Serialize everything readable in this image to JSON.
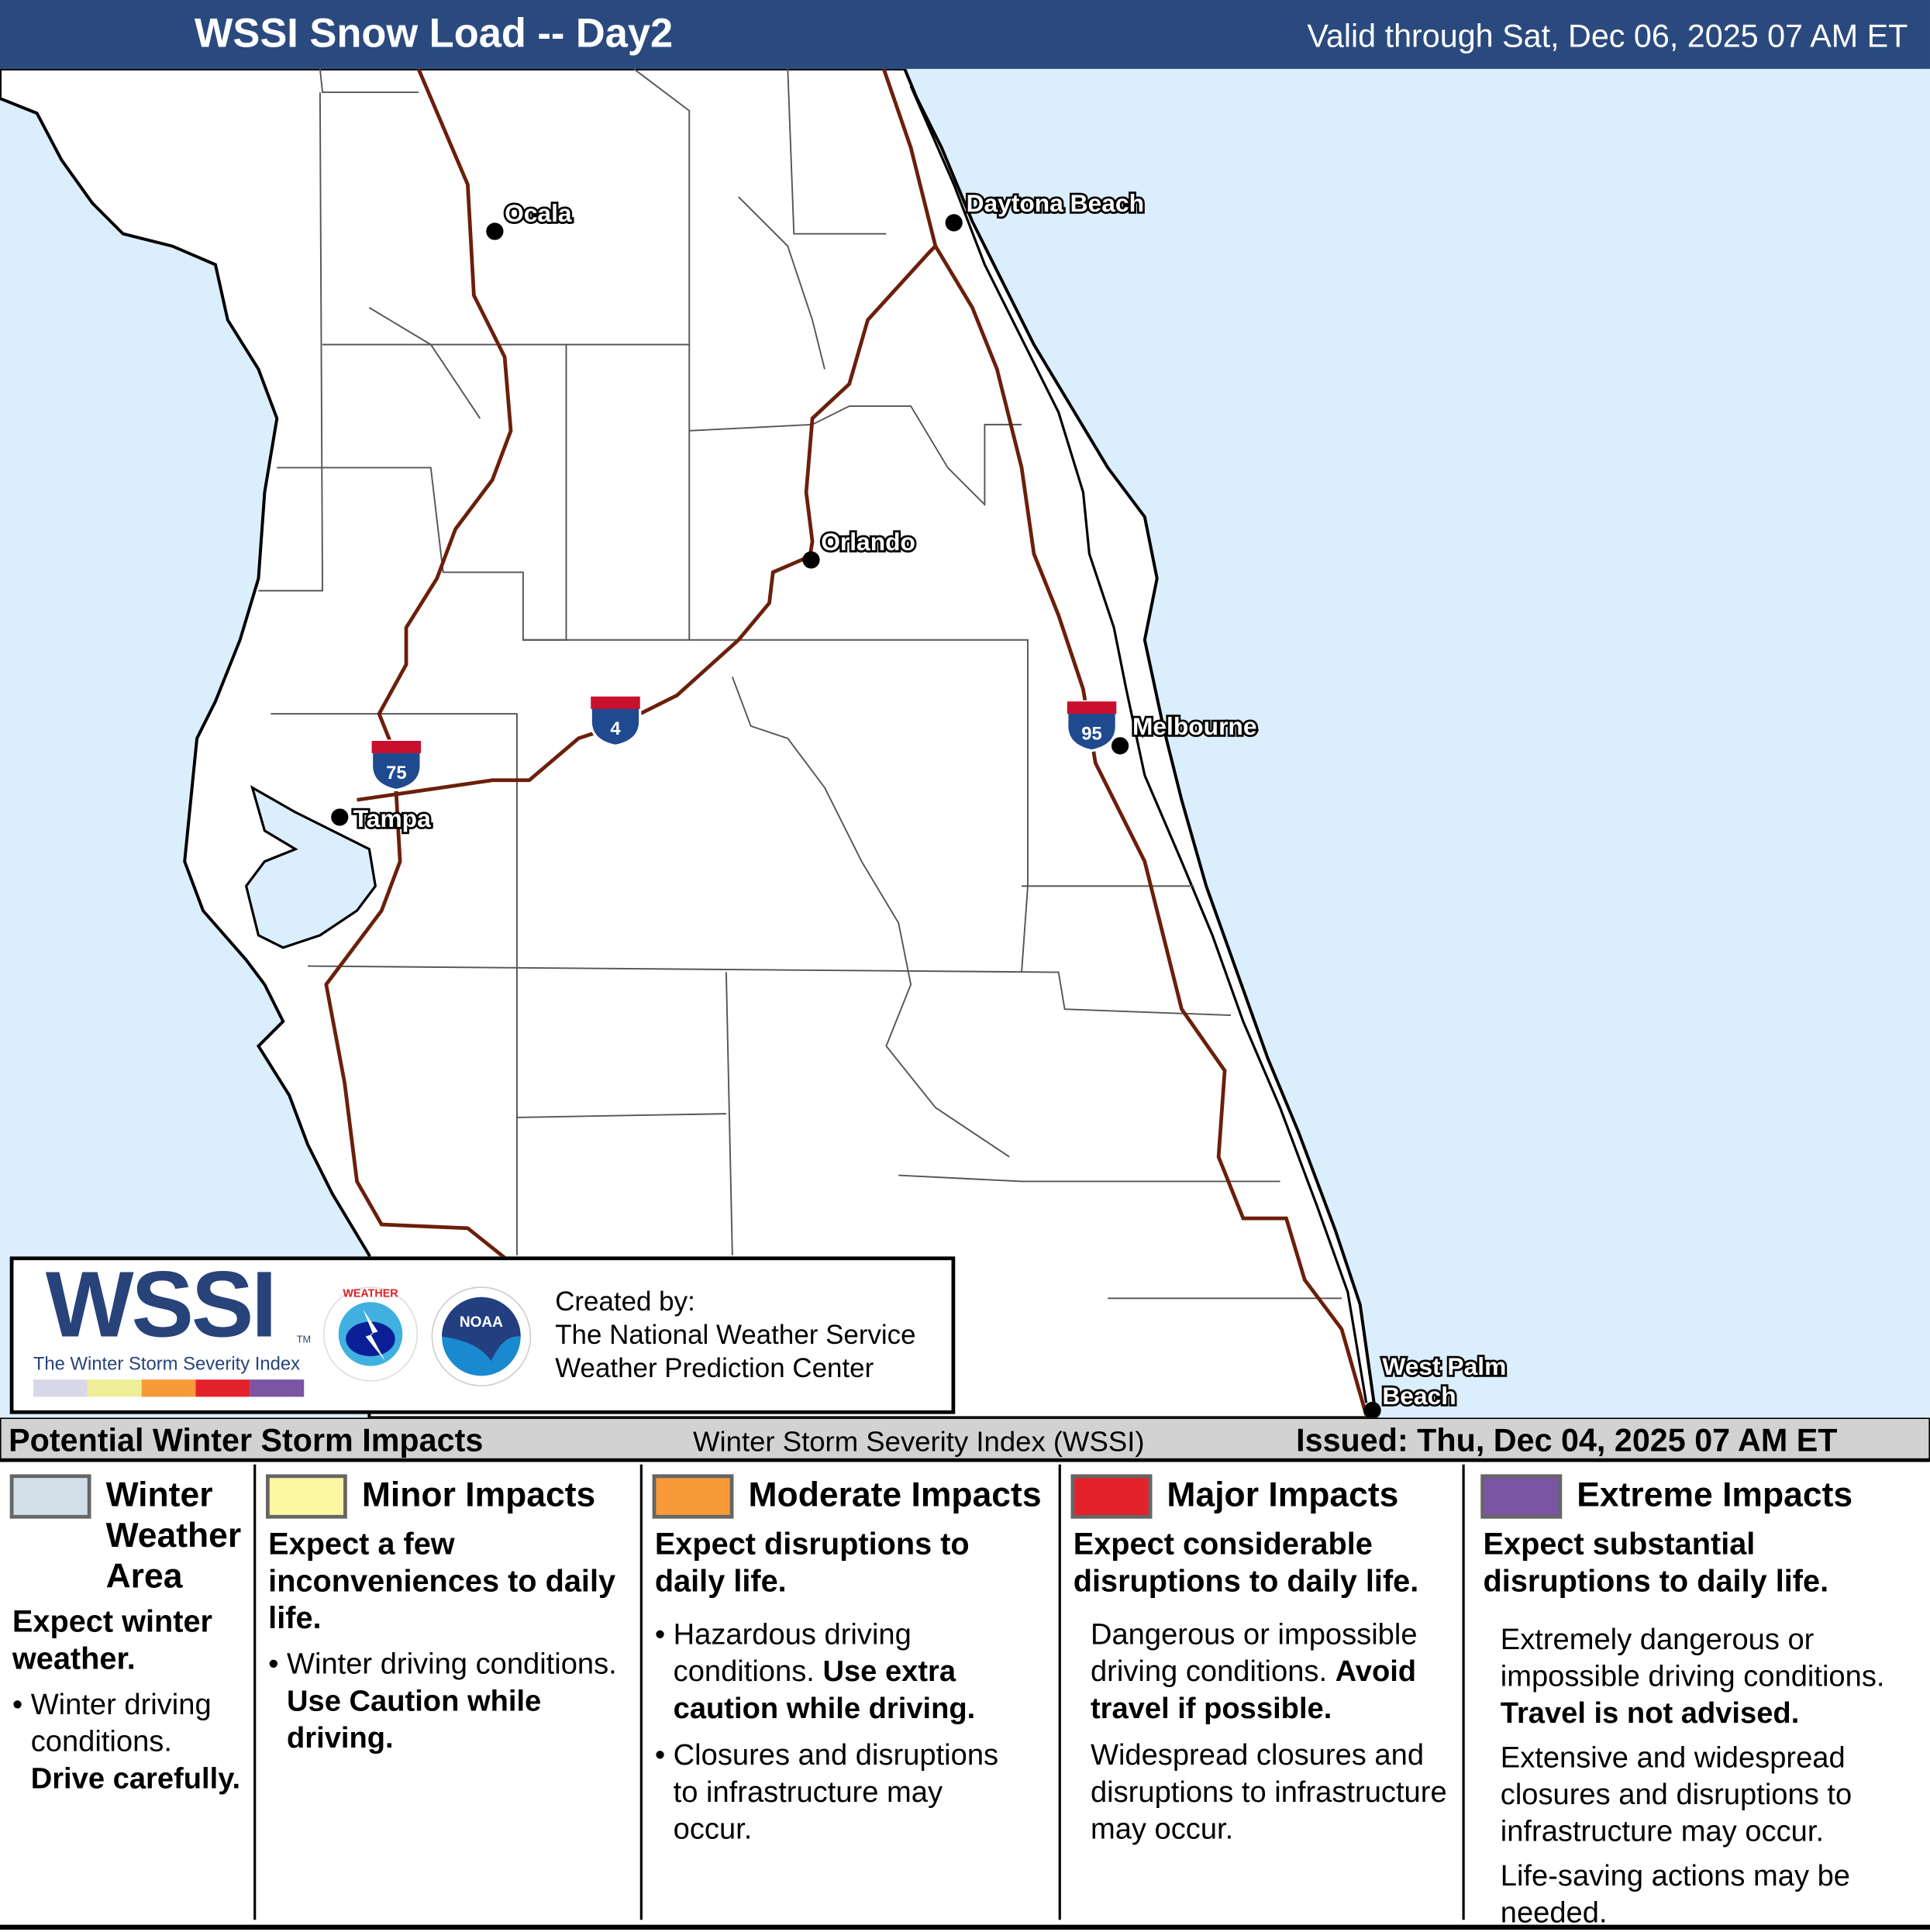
{
  "header": {
    "title": "WSSI Snow Load -- Day2",
    "valid": "Valid through Sat, Dec 06, 2025 07 AM ET",
    "bg_color": "#2a4a7f"
  },
  "map": {
    "water_color": "#dbeefc",
    "highway_color": "#6b1f0a",
    "cities": [
      {
        "name": "Ocala"
      },
      {
        "name": "Daytona Beach"
      },
      {
        "name": "Orlando"
      },
      {
        "name": "Melbourne"
      },
      {
        "name": "Tampa"
      },
      {
        "name": "West Palm"
      },
      {
        "name": "Beach"
      }
    ],
    "shields": [
      {
        "route": "75"
      },
      {
        "route": "4"
      },
      {
        "route": "95"
      }
    ]
  },
  "logo": {
    "wordmark": "WSSI",
    "tm": "TM",
    "subtitle": "The Winter Storm Severity Index",
    "nws_text": "NATIONAL WEATHER SERVICE",
    "noaa_text": "NOAA",
    "created_by": "Created by:",
    "org1": "The National Weather Service",
    "org2": "Weather Prediction Center",
    "scale_colors": [
      "#d8d8e8",
      "#eeee99",
      "#f89a38",
      "#e4222c",
      "#7b54a4"
    ]
  },
  "legend": {
    "title": "Potential Winter Storm Impacts",
    "index_name": "Winter Storm Severity Index (WSSI)",
    "issued": "Issued: Thu, Dec 04, 2025 07 AM ET",
    "categories": [
      {
        "name": "Winter Weather Area",
        "color": "#d2dfe8",
        "lead": "Expect winter weather.",
        "b1": "Winter driving conditions.",
        "b1_bold": "Drive carefully."
      },
      {
        "name": "Minor Impacts",
        "color": "#fbf7a3",
        "lead": "Expect a few inconveniences to daily life.",
        "b1": "Winter driving conditions.",
        "b1_bold": "Use Caution while driving."
      },
      {
        "name": "Moderate Impacts",
        "color": "#f89a38",
        "lead": "Expect disruptions to daily life.",
        "b1": "Hazardous driving conditions.",
        "b1_bold": "Use extra caution while driving.",
        "b2": "Closures and disruptions to infrastructure may occur."
      },
      {
        "name": "Major Impacts",
        "color": "#e4222c",
        "lead": "Expect considerable disruptions to daily life.",
        "p1": "Dangerous or impossible driving conditions.",
        "p1_bold": "Avoid travel if possible.",
        "p2": "Widespread closures and disruptions to infrastructure may occur."
      },
      {
        "name": "Extreme Impacts",
        "color": "#7b54a4",
        "lead": "Expect substantial disruptions to daily life.",
        "p1": "Extremely dangerous or impossible driving conditions.",
        "p1_bold": "Travel is not advised.",
        "p2": "Extensive and widespread closures and disruptions to infrastructure may occur.",
        "p3": "Life-saving actions may be needed."
      }
    ]
  }
}
